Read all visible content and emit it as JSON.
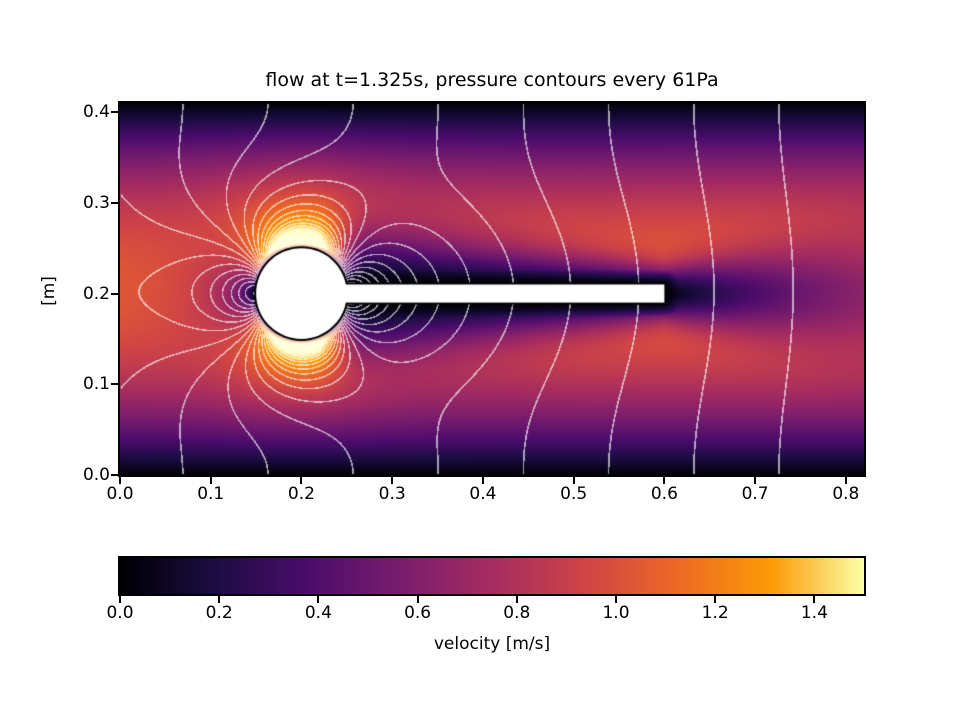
{
  "figure": {
    "background": "#ffffff",
    "text_color": "#000000"
  },
  "chart_data": {
    "type": "heatmap",
    "title": "flow at t=1.325s, pressure contours every 61Pa",
    "xlabel": "",
    "ylabel": "[m]",
    "xlim": [
      0.0,
      0.82
    ],
    "ylim": [
      0.0,
      0.41
    ],
    "x_ticks": [
      "0.0",
      "0.1",
      "0.2",
      "0.3",
      "0.4",
      "0.5",
      "0.6",
      "0.7",
      "0.8"
    ],
    "x_tick_values": [
      0.0,
      0.1,
      0.2,
      0.3,
      0.4,
      0.5,
      0.6,
      0.7,
      0.8
    ],
    "y_ticks": [
      "0.0",
      "0.1",
      "0.2",
      "0.3",
      "0.4"
    ],
    "y_tick_values": [
      0.0,
      0.1,
      0.2,
      0.3,
      0.4
    ],
    "time_s": 1.325,
    "contour_interval_pa": 61,
    "contour_color": "#ffffff",
    "contour_alpha": 0.62,
    "field": {
      "description": "velocity magnitude of unsteady channel flow past a rigid cylinder with a trailing elastic flag; white pressure contour lines overlaid; dark wake behind the obstacle, bright high-speed lobes above and below the cylinder, dark no-slip layers at the channel walls",
      "inlet_max_velocity_ms": 1.1,
      "channel_height_m": 0.41,
      "channel_length_m": 0.82,
      "cylinder": {
        "cx": 0.2,
        "cy": 0.2,
        "r": 0.05
      },
      "flag": {
        "x_start": 0.2,
        "x_end": 0.6,
        "y_center": 0.2,
        "half_thickness": 0.01
      },
      "obstacle_fill": "#ffffff",
      "obstacle_outline": "#000000",
      "pressure_dynamic_coeff": 500,
      "pressure_streamwise_gradient": 650
    },
    "colorbar": {
      "label": "velocity [m/s]",
      "vmin": 0.0,
      "vmax": 1.5,
      "ticks": [
        "0.0",
        "0.2",
        "0.4",
        "0.6",
        "0.8",
        "1.0",
        "1.2",
        "1.4"
      ],
      "tick_values": [
        0.0,
        0.2,
        0.4,
        0.6,
        0.8,
        1.0,
        1.2,
        1.4
      ],
      "colormap": "inferno",
      "stops": [
        [
          0.0,
          "#000004"
        ],
        [
          0.125,
          "#1b0c42"
        ],
        [
          0.25,
          "#4b0c6b"
        ],
        [
          0.375,
          "#781c6d"
        ],
        [
          0.5,
          "#a52c60"
        ],
        [
          0.625,
          "#cf4446"
        ],
        [
          0.75,
          "#ed6925"
        ],
        [
          0.875,
          "#fb9a06"
        ],
        [
          1.0,
          "#fcffa4"
        ]
      ]
    }
  }
}
